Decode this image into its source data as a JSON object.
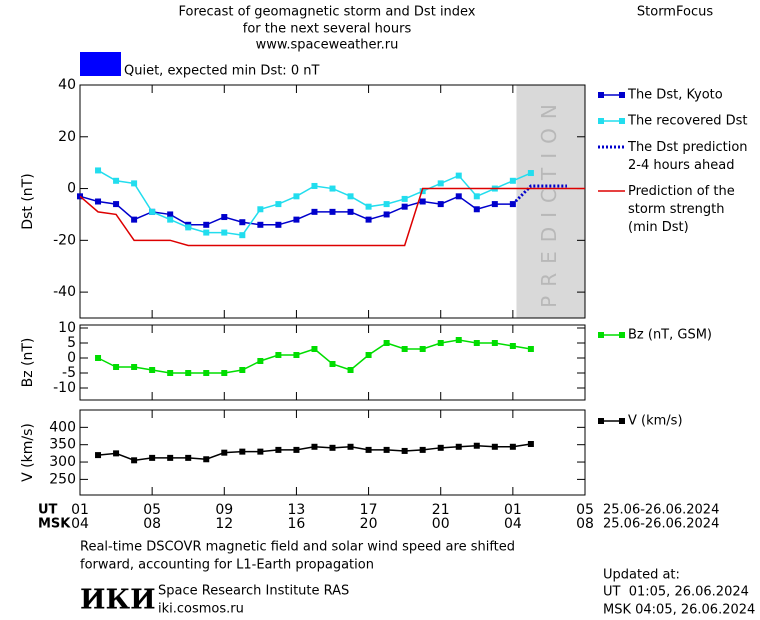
{
  "header": {
    "title_lines": [
      "Forecast of geomagnetic storm and Dst index",
      "for the next several hours",
      "www.spaceweather.ru"
    ],
    "brand": "StormFocus",
    "status": "Quiet, expected min Dst: 0 nT",
    "status_color": "#0000ff"
  },
  "chart_data": [
    {
      "type": "line",
      "ylabel": "Dst (nT)",
      "xlim": [
        0,
        28
      ],
      "xticks": [
        0,
        4,
        8,
        12,
        16,
        20,
        24,
        28
      ],
      "ylim": [
        -50,
        40
      ],
      "yticks": [
        -40,
        -20,
        0,
        20,
        40
      ],
      "legend": "right",
      "prediction_region": [
        24.2,
        28
      ],
      "prediction_label": "PREDICTION",
      "series": [
        {
          "name": "The Dst, Kyoto",
          "color": "#0000cc",
          "marker": true,
          "x": [
            0,
            1,
            2,
            3,
            4,
            5,
            6,
            7,
            8,
            9,
            10,
            11,
            12,
            13,
            14,
            15,
            16,
            17,
            18,
            19,
            20,
            21,
            22,
            23,
            24
          ],
          "values": [
            -3,
            -5,
            -6,
            -12,
            -9,
            -10,
            -14,
            -14,
            -11,
            -13,
            -14,
            -14,
            -12,
            -9,
            -9,
            -9,
            -12,
            -10,
            -7,
            -5,
            -6,
            -3,
            -8,
            -6,
            -6
          ]
        },
        {
          "name": "The recovered Dst",
          "color": "#22ddee",
          "marker": true,
          "x": [
            1,
            2,
            3,
            4,
            5,
            6,
            7,
            8,
            9,
            10,
            11,
            12,
            13,
            14,
            15,
            16,
            17,
            18,
            19,
            20,
            21,
            22,
            23,
            24,
            25
          ],
          "values": [
            7,
            3,
            2,
            -9,
            -12,
            -15,
            -17,
            -17,
            -18,
            -8,
            -6,
            -3,
            1,
            0,
            -3,
            -7,
            -6,
            -4,
            -1,
            2,
            5,
            -3,
            0,
            3,
            6
          ]
        },
        {
          "name": "The Dst prediction\n2-4 hours ahead",
          "color": "#0000cc",
          "dashed": true,
          "x": [
            24,
            25,
            26,
            27
          ],
          "values": [
            -6,
            1,
            1,
            1
          ]
        },
        {
          "name": "Prediction of the\nstorm strength\n(min Dst)",
          "color": "#dd0000",
          "x": [
            0,
            1,
            2,
            3,
            4,
            5,
            6,
            7,
            8,
            9,
            10,
            11,
            12,
            13,
            14,
            15,
            16,
            17,
            18,
            19,
            20,
            21,
            22,
            23,
            24,
            25,
            26,
            27,
            28
          ],
          "values": [
            -3,
            -9,
            -10,
            -20,
            -20,
            -20,
            -22,
            -22,
            -22,
            -22,
            -22,
            -22,
            -22,
            -22,
            -22,
            -22,
            -22,
            -22,
            -22,
            0,
            0,
            0,
            0,
            0,
            0,
            0,
            0,
            0,
            0
          ]
        }
      ]
    },
    {
      "type": "line",
      "ylabel": "Bz (nT)",
      "xlim": [
        0,
        28
      ],
      "xticks": [
        0,
        4,
        8,
        12,
        16,
        20,
        24,
        28
      ],
      "ylim": [
        -14,
        11
      ],
      "yticks": [
        -10,
        -5,
        0,
        5,
        10
      ],
      "legend": "right",
      "series": [
        {
          "name": "Bz (nT, GSM)",
          "color": "#00dd00",
          "marker": true,
          "x": [
            1,
            2,
            3,
            4,
            5,
            6,
            7,
            8,
            9,
            10,
            11,
            12,
            13,
            14,
            15,
            16,
            17,
            18,
            19,
            20,
            21,
            22,
            23,
            24,
            25
          ],
          "values": [
            0,
            -3,
            -3,
            -4,
            -5,
            -5,
            -5,
            -5,
            -4,
            -1,
            1,
            1,
            3,
            -2,
            -4,
            1,
            5,
            3,
            3,
            5,
            6,
            5,
            5,
            4,
            3
          ]
        }
      ]
    },
    {
      "type": "line",
      "ylabel": "V (km/s)",
      "xlim": [
        0,
        28
      ],
      "xticks": [
        {
          "value": 0,
          "label": "01"
        },
        {
          "value": 4,
          "label": "05"
        },
        {
          "value": 8,
          "label": "09"
        },
        {
          "value": 12,
          "label": "13"
        },
        {
          "value": 16,
          "label": "17"
        },
        {
          "value": 20,
          "label": "21"
        },
        {
          "value": 24,
          "label": "01"
        },
        {
          "value": 28,
          "label": "05"
        }
      ],
      "xlabel": "UT",
      "xrange_label": "25.06-26.06.2024",
      "x2ticks": [
        {
          "value": 0,
          "label": "04"
        },
        {
          "value": 4,
          "label": "08"
        },
        {
          "value": 8,
          "label": "12"
        },
        {
          "value": 12,
          "label": "16"
        },
        {
          "value": 16,
          "label": "20"
        },
        {
          "value": 20,
          "label": "00"
        },
        {
          "value": 24,
          "label": "04"
        },
        {
          "value": 28,
          "label": "08"
        }
      ],
      "x2label": "MSK",
      "x2range_label": "25.06-26.06.2024",
      "ylim": [
        205,
        450
      ],
      "yticks": [
        250,
        300,
        350,
        400
      ],
      "legend": "right",
      "series": [
        {
          "name": "V (km/s)",
          "color": "#000000",
          "marker": true,
          "x": [
            1,
            2,
            3,
            4,
            5,
            6,
            7,
            8,
            9,
            10,
            11,
            12,
            13,
            14,
            15,
            16,
            17,
            18,
            19,
            20,
            21,
            22,
            23,
            24,
            25
          ],
          "values": [
            320,
            325,
            305,
            312,
            312,
            312,
            308,
            327,
            330,
            330,
            335,
            335,
            344,
            341,
            344,
            335,
            335,
            332,
            335,
            341,
            344,
            347,
            344,
            344,
            352
          ]
        }
      ]
    }
  ],
  "footer": {
    "note_lines": [
      "Real-time DSCOVR magnetic field and solar wind speed are shifted",
      "forward, accounting for L1-Earth propagation"
    ],
    "logo": "ИКИ",
    "institute": "Space Research Institute RAS",
    "site": "iki.cosmos.ru",
    "updated_label": "Updated at:",
    "updated_ut": "UT  01:05, 26.06.2024",
    "updated_msk": "MSK 04:05, 26.06.2024"
  }
}
